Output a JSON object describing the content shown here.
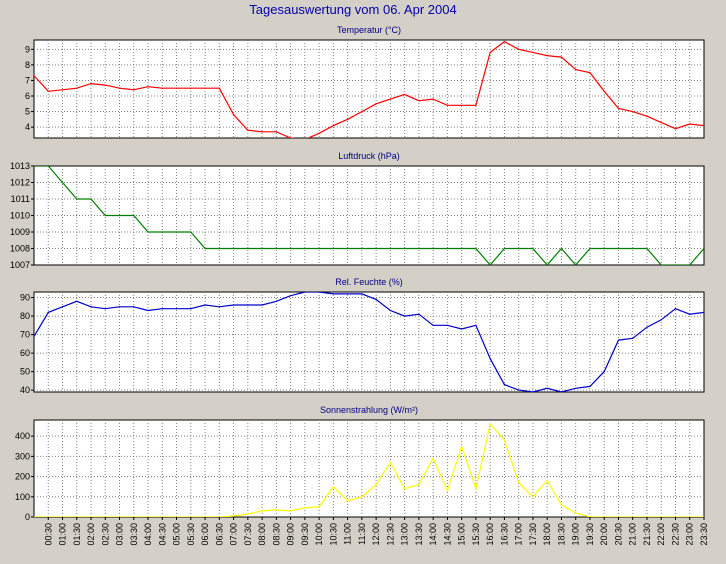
{
  "page": {
    "title": "Tagesauswertung vom 06. Apr 2004",
    "background_color": "#d4d0c8",
    "plot_background_color": "#ffffff",
    "grid": "dotted"
  },
  "time_labels": [
    "00:30",
    "01:00",
    "01:30",
    "02:00",
    "02:30",
    "03:00",
    "03:30",
    "04:00",
    "04:30",
    "05:00",
    "05:30",
    "06:00",
    "06:30",
    "07:00",
    "07:30",
    "08:00",
    "08:30",
    "09:00",
    "09:30",
    "10:00",
    "10:30",
    "11:00",
    "11:30",
    "12:00",
    "12:30",
    "13:00",
    "13:30",
    "14:00",
    "14:30",
    "15:00",
    "15:30",
    "16:00",
    "16:30",
    "17:00",
    "17:30",
    "18:00",
    "18:30",
    "19:00",
    "19:30",
    "20:00",
    "20:30",
    "21:00",
    "21:30",
    "22:00",
    "22:30",
    "23:00",
    "23:30"
  ],
  "chart_data": [
    {
      "type": "line",
      "title": "Temperatur (°C)",
      "color": "#ff0000",
      "ylim": [
        3.3,
        9.6
      ],
      "yticks": [
        4,
        5,
        6,
        7,
        8,
        9
      ],
      "grid": true,
      "x": [
        0,
        0.5,
        1,
        1.5,
        2,
        2.5,
        3,
        3.5,
        4,
        4.5,
        5,
        5.5,
        6,
        6.5,
        7,
        7.5,
        8,
        8.5,
        9,
        9.5,
        10,
        10.5,
        11,
        11.5,
        12,
        12.5,
        13,
        13.5,
        14,
        14.5,
        15,
        15.5,
        16,
        16.5,
        17,
        17.5,
        18,
        18.5,
        19,
        19.5,
        20,
        20.5,
        21,
        21.5,
        22,
        22.5,
        23,
        23.5
      ],
      "values": [
        7.3,
        6.3,
        6.4,
        6.5,
        6.8,
        6.7,
        6.5,
        6.4,
        6.6,
        6.5,
        6.5,
        6.5,
        6.5,
        6.5,
        4.8,
        3.8,
        3.7,
        3.7,
        3.3,
        3.2,
        3.6,
        4.1,
        4.5,
        5.0,
        5.5,
        5.8,
        6.1,
        5.7,
        5.8,
        5.4,
        5.4,
        5.4,
        8.8,
        9.5,
        9.0,
        8.8,
        8.6,
        8.5,
        7.7,
        7.5,
        6.3,
        5.2,
        5.0,
        4.7,
        4.3,
        3.9,
        4.2,
        4.1
      ]
    },
    {
      "type": "line",
      "title": "Luftdruck (hPa)",
      "color": "#008000",
      "ylim": [
        1007,
        1013
      ],
      "yticks": [
        1007,
        1008,
        1009,
        1010,
        1011,
        1012,
        1013
      ],
      "grid": true,
      "x": [
        0,
        0.5,
        1,
        1.5,
        2,
        2.5,
        3,
        3.5,
        4,
        4.5,
        5,
        5.5,
        6,
        6.5,
        7,
        7.5,
        8,
        8.5,
        9,
        9.5,
        10,
        10.5,
        11,
        11.5,
        12,
        12.5,
        13,
        13.5,
        14,
        14.5,
        15,
        15.5,
        16,
        16.5,
        17,
        17.5,
        18,
        18.5,
        19,
        19.5,
        20,
        20.5,
        21,
        21.5,
        22,
        22.5,
        23,
        23.5
      ],
      "values": [
        1013,
        1013,
        1012,
        1011,
        1011,
        1010,
        1010,
        1010,
        1009,
        1009,
        1009,
        1009,
        1008,
        1008,
        1008,
        1008,
        1008,
        1008,
        1008,
        1008,
        1008,
        1008,
        1008,
        1008,
        1008,
        1008,
        1008,
        1008,
        1008,
        1008,
        1008,
        1008,
        1007,
        1008,
        1008,
        1008,
        1007,
        1008,
        1007,
        1008,
        1008,
        1008,
        1008,
        1008,
        1007,
        1007,
        1007,
        1008
      ]
    },
    {
      "type": "line",
      "title": "Rel. Feuchte (%)",
      "color": "#0000cc",
      "ylim": [
        39,
        93
      ],
      "yticks": [
        40,
        50,
        60,
        70,
        80,
        90
      ],
      "grid": true,
      "x": [
        0,
        0.5,
        1,
        1.5,
        2,
        2.5,
        3,
        3.5,
        4,
        4.5,
        5,
        5.5,
        6,
        6.5,
        7,
        7.5,
        8,
        8.5,
        9,
        9.5,
        10,
        10.5,
        11,
        11.5,
        12,
        12.5,
        13,
        13.5,
        14,
        14.5,
        15,
        15.5,
        16,
        16.5,
        17,
        17.5,
        18,
        18.5,
        19,
        19.5,
        20,
        20.5,
        21,
        21.5,
        22,
        22.5,
        23,
        23.5
      ],
      "values": [
        69,
        82,
        85,
        88,
        85,
        84,
        85,
        85,
        83,
        84,
        84,
        84,
        86,
        85,
        86,
        86,
        86,
        88,
        91,
        93,
        93,
        92,
        92,
        92,
        89,
        83,
        80,
        81,
        75,
        75,
        73,
        75,
        57,
        43,
        40,
        39,
        41,
        39,
        41,
        42,
        50,
        67,
        68,
        74,
        78,
        84,
        81,
        82
      ]
    },
    {
      "type": "line",
      "title": "Sonnenstrahlung (W/m²)",
      "color": "#ffff00",
      "ylim": [
        0,
        480
      ],
      "yticks": [
        0,
        100,
        200,
        300,
        400
      ],
      "grid": true,
      "x": [
        0,
        0.5,
        1,
        1.5,
        2,
        2.5,
        3,
        3.5,
        4,
        4.5,
        5,
        5.5,
        6,
        6.5,
        7,
        7.5,
        8,
        8.5,
        9,
        9.5,
        10,
        10.5,
        11,
        11.5,
        12,
        12.5,
        13,
        13.5,
        14,
        14.5,
        15,
        15.5,
        16,
        16.5,
        17,
        17.5,
        18,
        18.5,
        19,
        19.5,
        20,
        20.5,
        21,
        21.5,
        22,
        22.5,
        23,
        23.5
      ],
      "values": [
        0,
        0,
        0,
        0,
        0,
        0,
        0,
        0,
        0,
        0,
        0,
        0,
        0,
        0,
        5,
        15,
        30,
        35,
        30,
        45,
        50,
        150,
        80,
        100,
        160,
        270,
        140,
        160,
        290,
        130,
        350,
        140,
        460,
        380,
        170,
        100,
        180,
        60,
        20,
        0,
        0,
        0,
        0,
        0,
        0,
        0,
        0,
        0
      ]
    }
  ]
}
